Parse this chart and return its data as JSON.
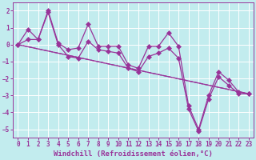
{
  "xlabel": "Windchill (Refroidissement éolien,°C)",
  "xlim": [
    -0.5,
    23.5
  ],
  "ylim": [
    -5.5,
    2.5
  ],
  "yticks": [
    2,
    1,
    0,
    -1,
    -2,
    -3,
    -4,
    -5
  ],
  "xticks": [
    0,
    1,
    2,
    3,
    4,
    5,
    6,
    7,
    8,
    9,
    10,
    11,
    12,
    13,
    14,
    15,
    16,
    17,
    18,
    19,
    20,
    21,
    22,
    23
  ],
  "background_color": "#c2ecee",
  "grid_color": "#ffffff",
  "line_color": "#993399",
  "x": [
    0,
    1,
    2,
    3,
    4,
    5,
    6,
    7,
    8,
    9,
    10,
    11,
    12,
    13,
    14,
    15,
    16,
    17,
    18,
    19,
    20,
    21,
    22,
    23
  ],
  "line1": [
    0.0,
    0.9,
    0.3,
    2.0,
    0.1,
    -0.3,
    -0.2,
    1.2,
    -0.1,
    -0.1,
    -0.1,
    -1.2,
    -1.4,
    -0.1,
    -0.1,
    0.7,
    -0.1,
    -3.6,
    -5.0,
    -3.0,
    -1.6,
    -2.1,
    -2.8,
    -2.9
  ],
  "line2": [
    0.0,
    0.3,
    0.3,
    1.9,
    0.0,
    -0.7,
    -0.8,
    0.2,
    -0.3,
    -0.4,
    -0.5,
    -1.4,
    -1.6,
    -0.7,
    -0.5,
    -0.2,
    -0.8,
    -3.8,
    -5.1,
    -3.2,
    -1.9,
    -2.4,
    -2.9,
    -2.9
  ],
  "line3_x": [
    0,
    23
  ],
  "line3_y": [
    0.0,
    -2.9
  ],
  "line4_x": [
    0,
    23
  ],
  "line4_y": [
    0.0,
    -2.9
  ],
  "marker_size": 3,
  "line_width": 0.9,
  "font_family": "monospace",
  "tick_fontsize": 5.5,
  "xlabel_fontsize": 6.5
}
